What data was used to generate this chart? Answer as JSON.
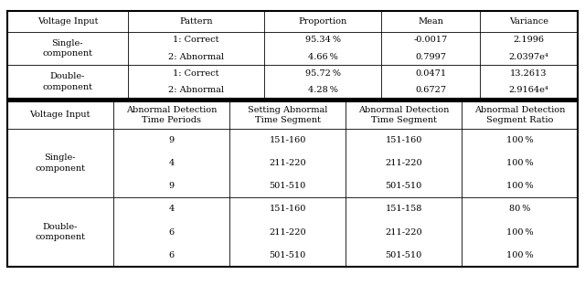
{
  "figsize": [
    6.4,
    3.35
  ],
  "dpi": 100,
  "table1": {
    "headers": [
      "Voltage Input",
      "Pattern",
      "Proportion",
      "Mean",
      "Variance"
    ],
    "rows": [
      [
        "Single-\ncomponent",
        "1: Correct",
        "95.34 %",
        "-0.0017",
        "2.1996"
      ],
      [
        "",
        "2: Abnormal",
        "4.66 %",
        "0.7997",
        "2.0397e⁴"
      ],
      [
        "Double-\ncomponent",
        "1: Correct",
        "95.72 %",
        "0.0471",
        "13.2613"
      ],
      [
        "",
        "2: Abnormal",
        "4.28 %",
        "0.6727",
        "2.9164e⁴"
      ]
    ]
  },
  "table2": {
    "headers": [
      "Voltage Input",
      "Abnormal Detection\nTime Periods",
      "Setting Abnormal\nTime Segment",
      "Abnormal Detection\nTime Segment",
      "Abnormal Detection\nSegment Ratio"
    ],
    "rows": [
      [
        "Single-\ncomponent",
        "9",
        "151-160",
        "151-160",
        "100 %"
      ],
      [
        "",
        "4",
        "211-220",
        "211-220",
        "100 %"
      ],
      [
        "",
        "9",
        "501-510",
        "501-510",
        "100 %"
      ],
      [
        "Double-\ncomponent",
        "4",
        "151-160",
        "151-158",
        "80 %"
      ],
      [
        "",
        "6",
        "211-220",
        "211-220",
        "100 %"
      ],
      [
        "",
        "6",
        "501-510",
        "501-510",
        "100 %"
      ]
    ]
  },
  "font_size": 7.0,
  "bg_color": "#ffffff"
}
